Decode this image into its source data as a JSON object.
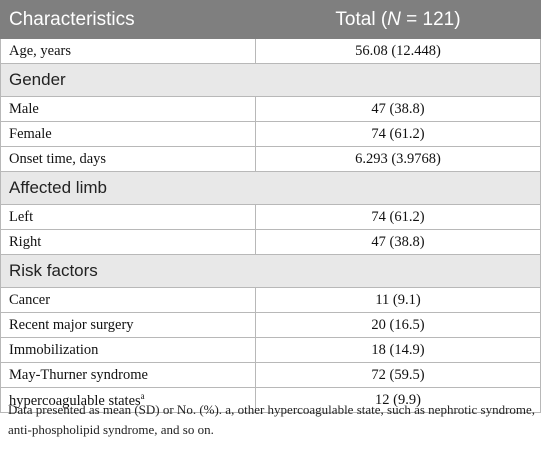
{
  "header": {
    "col1": "Characteristics",
    "col2_prefix": "Total (",
    "col2_n": "N",
    "col2_suffix": " = 121)"
  },
  "rows": {
    "age": {
      "label": "Age, years",
      "value": "56.08 (12.448)"
    },
    "gender_section": "Gender",
    "male": {
      "label": "Male",
      "value": "47 (38.8)"
    },
    "female": {
      "label": "Female",
      "value": "74 (61.2)"
    },
    "onset": {
      "label": "Onset time, days",
      "value": "6.293 (3.9768)"
    },
    "limb_section": "Affected limb",
    "left": {
      "label": "Left",
      "value": "74 (61.2)"
    },
    "right": {
      "label": "Right",
      "value": "47 (38.8)"
    },
    "risk_section": "Risk factors",
    "cancer": {
      "label": "Cancer",
      "value": "11 (9.1)"
    },
    "surgery": {
      "label": "Recent major surgery",
      "value": "20 (16.5)"
    },
    "immob": {
      "label": "Immobilization",
      "value": "18 (14.9)"
    },
    "may": {
      "label": "May-Thurner syndrome",
      "value": "72 (59.5)"
    },
    "hyper": {
      "label": " hypercoagulable states",
      "sup": "a",
      "value": "12 (9.9)"
    }
  },
  "footnote": "Data presented as mean (SD) or No. (%). a, other hypercoagulable state, such as nephrotic syndrome, anti-phospholipid syndrome, and so on."
}
